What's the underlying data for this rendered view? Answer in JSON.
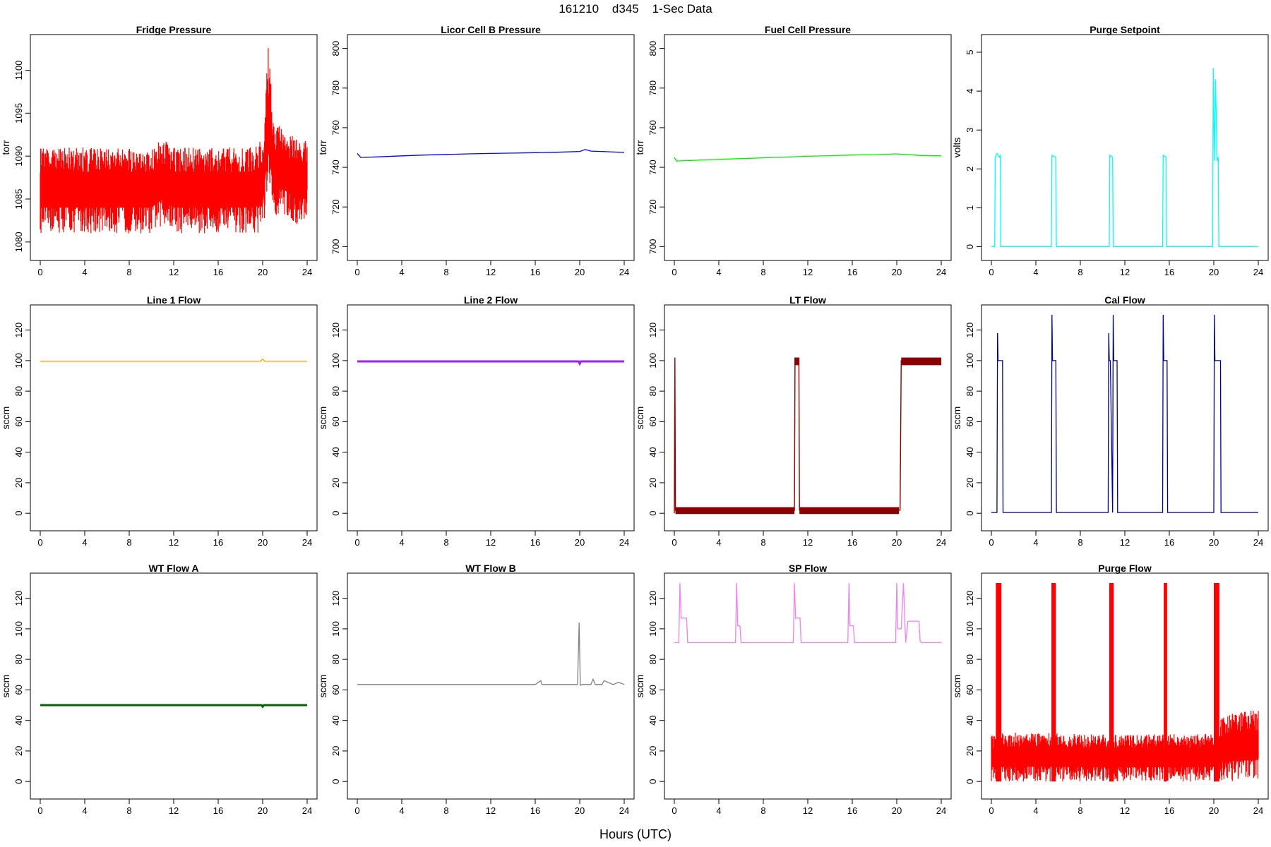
{
  "figure": {
    "title": "161210    d345    1-Sec Data",
    "xlabel": "Hours (UTC)"
  },
  "chart_data": [
    {
      "id": "fridge",
      "type": "line",
      "title": "Fridge Pressure",
      "ylabel": "torr",
      "color": "#ff0000",
      "xlim": [
        0,
        24
      ],
      "ylim": [
        1079,
        1103
      ],
      "xticks": [
        0,
        4,
        8,
        12,
        16,
        20,
        24
      ],
      "yticks": [
        1080,
        1085,
        1090,
        1095,
        1100
      ],
      "x": [
        0,
        1,
        2,
        3,
        4,
        5,
        6,
        7,
        8,
        9,
        10,
        11,
        12,
        13,
        14,
        15,
        16,
        17,
        18,
        19,
        20,
        20.5,
        21,
        22,
        23,
        24
      ],
      "y_low": [
        1081,
        1081,
        1081,
        1081,
        1081,
        1081,
        1081,
        1081,
        1081,
        1081,
        1081,
        1082,
        1081,
        1081,
        1081,
        1081,
        1081,
        1081,
        1081,
        1081,
        1081,
        1085,
        1083,
        1083,
        1082,
        1082
      ],
      "y_high": [
        1091,
        1091,
        1091,
        1091,
        1091,
        1091,
        1091,
        1091,
        1091,
        1091,
        1091,
        1092,
        1091,
        1091,
        1091,
        1091,
        1091,
        1091,
        1091,
        1091,
        1092,
        1103,
        1094,
        1093,
        1092,
        1092
      ]
    },
    {
      "id": "licor",
      "type": "line",
      "title": "Licor Cell B Pressure",
      "ylabel": "torr",
      "color": "#0000ff",
      "xlim": [
        0,
        24
      ],
      "ylim": [
        698,
        802
      ],
      "xticks": [
        0,
        4,
        8,
        12,
        16,
        20,
        24
      ],
      "yticks": [
        700,
        720,
        740,
        760,
        780,
        800
      ],
      "x": [
        0,
        0.3,
        2,
        4,
        6,
        8,
        10,
        12,
        14,
        16,
        18,
        20,
        20.5,
        21,
        22,
        24
      ],
      "y": [
        747,
        745,
        745.3,
        745.8,
        746.2,
        746.5,
        746.8,
        747,
        747.2,
        747.4,
        747.6,
        748,
        749,
        748.2,
        748,
        747.5
      ]
    },
    {
      "id": "fuel",
      "type": "line",
      "title": "Fuel Cell Pressure",
      "ylabel": "torr",
      "color": "#00ee00",
      "xlim": [
        0,
        24
      ],
      "ylim": [
        698,
        802
      ],
      "xticks": [
        0,
        4,
        8,
        12,
        16,
        20,
        24
      ],
      "yticks": [
        700,
        720,
        740,
        760,
        780,
        800
      ],
      "x": [
        0,
        0.2,
        2,
        4,
        6,
        8,
        10,
        12,
        14,
        16,
        18,
        20,
        22,
        24
      ],
      "y": [
        745,
        743.2,
        743.6,
        744,
        744.4,
        744.8,
        745.2,
        745.6,
        745.9,
        746.2,
        746.4,
        746.8,
        746,
        745.8
      ]
    },
    {
      "id": "purge_sp",
      "type": "line",
      "title": "Purge Setpoint",
      "ylabel": "volts",
      "color": "#00ffff",
      "xlim": [
        0,
        24
      ],
      "ylim": [
        -0.1,
        5.2
      ],
      "xticks": [
        0,
        4,
        8,
        12,
        16,
        20,
        24
      ],
      "yticks": [
        0,
        1,
        2,
        3,
        4,
        5
      ],
      "x": [
        0,
        0.3,
        0.35,
        0.5,
        0.7,
        0.8,
        0.85,
        5.4,
        5.45,
        5.8,
        5.85,
        10.6,
        10.65,
        10.9,
        10.95,
        15.4,
        15.45,
        15.7,
        15.75,
        19.9,
        19.95,
        20.05,
        20.15,
        20.3,
        20.4,
        20.45,
        24
      ],
      "y": [
        0,
        0,
        2.3,
        2.4,
        2.3,
        2.35,
        0,
        0,
        2.35,
        2.3,
        0,
        0,
        2.35,
        2.3,
        0,
        0,
        2.35,
        2.3,
        0,
        0,
        4.6,
        2.2,
        4.3,
        2.2,
        2.3,
        0,
        0
      ]
    },
    {
      "id": "line1",
      "type": "line",
      "title": "Line 1 Flow",
      "ylabel": "sccm",
      "color": "#ffa500",
      "xlim": [
        0,
        24
      ],
      "ylim": [
        -5,
        130
      ],
      "xticks": [
        0,
        4,
        8,
        12,
        16,
        20,
        24
      ],
      "yticks": [
        0,
        20,
        40,
        60,
        80,
        100,
        120
      ],
      "x": [
        0,
        4,
        8,
        12,
        16,
        19.8,
        20,
        20.2,
        24
      ],
      "y": [
        99.5,
        99.5,
        99.5,
        99.5,
        99.5,
        99.5,
        101,
        99.5,
        99.5
      ]
    },
    {
      "id": "line2",
      "type": "line",
      "title": "Line 2 Flow",
      "ylabel": "sccm",
      "color": "#a020f0",
      "xlim": [
        0,
        24
      ],
      "ylim": [
        -5,
        130
      ],
      "xticks": [
        0,
        4,
        8,
        12,
        16,
        20,
        24
      ],
      "yticks": [
        0,
        20,
        40,
        60,
        80,
        100,
        120
      ],
      "x": [
        0,
        4,
        8,
        12,
        16,
        19.9,
        20,
        20.1,
        24
      ],
      "y": [
        99.5,
        99.5,
        99.5,
        99.5,
        99.5,
        99.5,
        98,
        99.5,
        99.5
      ]
    },
    {
      "id": "lt",
      "type": "line",
      "title": "LT Flow",
      "ylabel": "sccm",
      "color": "#8b0000",
      "xlim": [
        0,
        24
      ],
      "ylim": [
        -5,
        130
      ],
      "xticks": [
        0,
        4,
        8,
        12,
        16,
        20,
        24
      ],
      "yticks": [
        0,
        20,
        40,
        60,
        80,
        100,
        120
      ],
      "x": [
        0,
        0.05,
        0.1,
        2,
        4,
        6,
        8,
        10,
        10.8,
        10.85,
        11.2,
        11.25,
        13,
        16,
        19,
        20.2,
        20.3,
        20.4,
        22,
        24
      ],
      "y": [
        0,
        102,
        2,
        2,
        2,
        2,
        2,
        2,
        2,
        100,
        100,
        2,
        2,
        2,
        2,
        2,
        2,
        100,
        100,
        100
      ]
    },
    {
      "id": "cal",
      "type": "line",
      "title": "Cal Flow",
      "ylabel": "sccm",
      "color": "#00008b",
      "xlim": [
        0,
        24
      ],
      "ylim": [
        -5,
        130
      ],
      "xticks": [
        0,
        4,
        8,
        12,
        16,
        20,
        24
      ],
      "yticks": [
        0,
        20,
        40,
        60,
        80,
        100,
        120
      ],
      "x": [
        0,
        0.5,
        0.55,
        0.6,
        0.7,
        1.0,
        1.05,
        5.4,
        5.45,
        5.5,
        5.8,
        5.85,
        10.5,
        10.55,
        10.6,
        10.7,
        10.9,
        10.95,
        11.0,
        11.3,
        11.35,
        15.4,
        15.45,
        15.5,
        15.8,
        15.85,
        20,
        20.05,
        20.1,
        20.2,
        20.6,
        20.65,
        24
      ],
      "y": [
        0.5,
        0.5,
        118,
        100,
        100,
        100,
        0.5,
        0.5,
        130,
        100,
        100,
        0.5,
        0.5,
        118,
        100,
        100,
        0.5,
        130,
        100,
        100,
        0.5,
        0.5,
        130,
        100,
        100,
        0.5,
        0.5,
        130,
        100,
        100,
        100,
        0.5,
        0.5
      ]
    },
    {
      "id": "wta",
      "type": "line",
      "title": "WT Flow A",
      "ylabel": "sccm",
      "color": "#006400",
      "xlim": [
        0,
        24
      ],
      "ylim": [
        -5,
        130
      ],
      "xticks": [
        0,
        4,
        8,
        12,
        16,
        20,
        24
      ],
      "yticks": [
        0,
        20,
        40,
        60,
        80,
        100,
        120
      ],
      "x": [
        0,
        4,
        8,
        12,
        16,
        19.9,
        20,
        20.1,
        24
      ],
      "y": [
        50,
        50,
        50,
        50,
        50,
        50,
        49,
        50,
        50
      ]
    },
    {
      "id": "wtb",
      "type": "line",
      "title": "WT Flow B",
      "ylabel": "sccm",
      "color": "#808080",
      "xlim": [
        0,
        24
      ],
      "ylim": [
        -5,
        130
      ],
      "xticks": [
        0,
        4,
        8,
        12,
        16,
        20,
        24
      ],
      "yticks": [
        0,
        20,
        40,
        60,
        80,
        100,
        120
      ],
      "x": [
        0,
        4,
        8,
        12,
        14,
        16,
        16.5,
        16.6,
        18,
        19.8,
        19.95,
        20.05,
        20.2,
        21,
        21.2,
        21.4,
        22,
        22.2,
        23,
        23.5,
        24
      ],
      "y": [
        63.5,
        63.5,
        63.5,
        63.5,
        63.5,
        63.5,
        66,
        63.5,
        63.5,
        63.5,
        104,
        63,
        63.5,
        63.5,
        67,
        63.5,
        63.5,
        66,
        63.5,
        65,
        63.5
      ]
    },
    {
      "id": "sp",
      "type": "line",
      "title": "SP Flow",
      "ylabel": "sccm",
      "color": "#ee82ee",
      "xlim": [
        0,
        24
      ],
      "ylim": [
        -5,
        130
      ],
      "xticks": [
        0,
        4,
        8,
        12,
        16,
        20,
        24
      ],
      "yticks": [
        0,
        20,
        40,
        60,
        80,
        100,
        120
      ],
      "x": [
        0,
        0.4,
        0.5,
        0.6,
        0.8,
        1.1,
        1.2,
        5.5,
        5.6,
        5.7,
        5.9,
        6.0,
        10.7,
        10.8,
        10.9,
        11.3,
        11.4,
        15.6,
        15.7,
        15.8,
        16.1,
        16.2,
        19.9,
        20.0,
        20.1,
        20.4,
        20.6,
        20.8,
        21,
        21.2,
        22,
        22.1,
        22.2,
        23,
        24
      ],
      "y": [
        91,
        91,
        130,
        107,
        107,
        107,
        91,
        91,
        130,
        102,
        102,
        91,
        91,
        130,
        107,
        107,
        91,
        91,
        130,
        102,
        102,
        91,
        91,
        130,
        100,
        100,
        130,
        91,
        105,
        105,
        105,
        92,
        91,
        91,
        91
      ]
    },
    {
      "id": "purge_flow",
      "type": "line",
      "title": "Purge Flow",
      "ylabel": "sccm",
      "color": "#ff0000",
      "xlim": [
        0,
        24
      ],
      "ylim": [
        -5,
        130
      ],
      "xticks": [
        0,
        4,
        8,
        12,
        16,
        20,
        24
      ],
      "yticks": [
        0,
        20,
        40,
        60,
        80,
        100,
        120
      ],
      "x": [
        0,
        2,
        4,
        6,
        8,
        10,
        12,
        14,
        16,
        18,
        20,
        20.5,
        21,
        22,
        23,
        24
      ],
      "y_low": [
        0,
        0,
        0,
        0,
        0,
        0,
        0,
        0,
        0,
        0,
        0,
        0,
        0,
        0,
        0,
        0
      ],
      "y_high": [
        31,
        32,
        32,
        32,
        31,
        31,
        31,
        31,
        31,
        31,
        32,
        40,
        44,
        45,
        46,
        47
      ],
      "spikes": [
        [
          0.4,
          0.9
        ],
        [
          5.4,
          5.8
        ],
        [
          10.6,
          11.0
        ],
        [
          15.5,
          15.8
        ],
        [
          20.0,
          20.5
        ]
      ]
    }
  ]
}
